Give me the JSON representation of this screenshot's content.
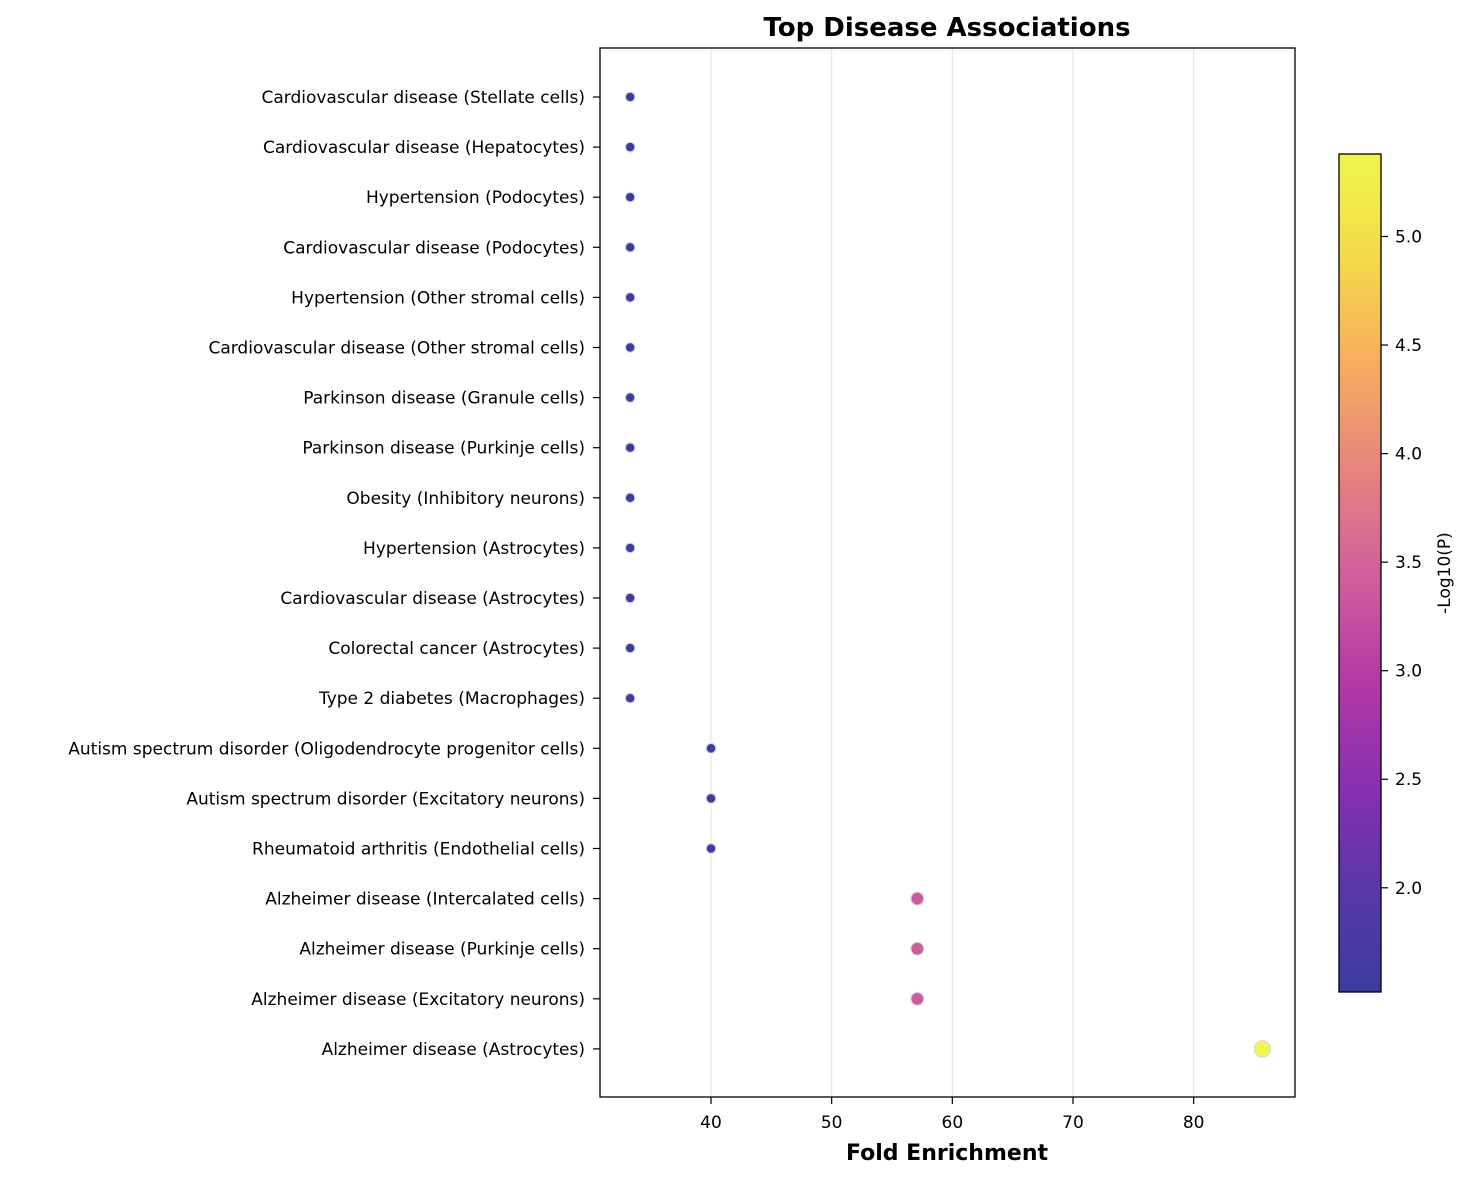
{
  "chart_data": {
    "type": "scatter",
    "title": "Top Disease Associations",
    "xlabel": "Fold Enrichment",
    "ylabel": "",
    "xlim": [
      30.8,
      88.4
    ],
    "xticks": [
      40,
      50,
      60,
      70,
      80
    ],
    "grid": "vertical",
    "colormap": "plasma",
    "colorbar": {
      "label": "-Log10(P)",
      "range": [
        1.52,
        5.38
      ],
      "ticks": [
        2.0,
        2.5,
        3.0,
        3.5,
        4.0,
        4.5,
        5.0
      ],
      "tick_labels": [
        "2.0",
        "2.5",
        "3.0",
        "3.5",
        "4.0",
        "4.5",
        "5.0"
      ]
    },
    "categories": [
      "Cardiovascular disease (Stellate cells)",
      "Cardiovascular disease (Hepatocytes)",
      "Hypertension (Podocytes)",
      "Cardiovascular disease (Podocytes)",
      "Hypertension (Other stromal cells)",
      "Cardiovascular disease (Other stromal cells)",
      "Parkinson disease (Granule cells)",
      "Parkinson disease (Purkinje cells)",
      "Obesity (Inhibitory neurons)",
      "Hypertension (Astrocytes)",
      "Cardiovascular disease (Astrocytes)",
      "Colorectal cancer (Astrocytes)",
      "Type 2 diabetes (Macrophages)",
      "Autism spectrum disorder (Oligodendrocyte progenitor cells)",
      "Autism spectrum disorder (Excitatory neurons)",
      "Rheumatoid arthritis (Endothelial cells)",
      "Alzheimer disease (Intercalated cells)",
      "Alzheimer disease (Purkinje cells)",
      "Alzheimer disease (Excitatory neurons)",
      "Alzheimer disease (Astrocytes)"
    ],
    "x": [
      33.3,
      33.3,
      33.3,
      33.3,
      33.3,
      33.3,
      33.3,
      33.3,
      33.3,
      33.3,
      33.3,
      33.3,
      33.3,
      40.0,
      40.0,
      40.0,
      57.1,
      57.1,
      57.1,
      85.7
    ],
    "neglog10p": [
      1.52,
      1.52,
      1.52,
      1.52,
      1.52,
      1.52,
      1.52,
      1.52,
      1.52,
      1.52,
      1.52,
      1.52,
      1.52,
      1.6,
      1.6,
      1.6,
      3.4,
      3.4,
      3.4,
      5.38
    ]
  }
}
